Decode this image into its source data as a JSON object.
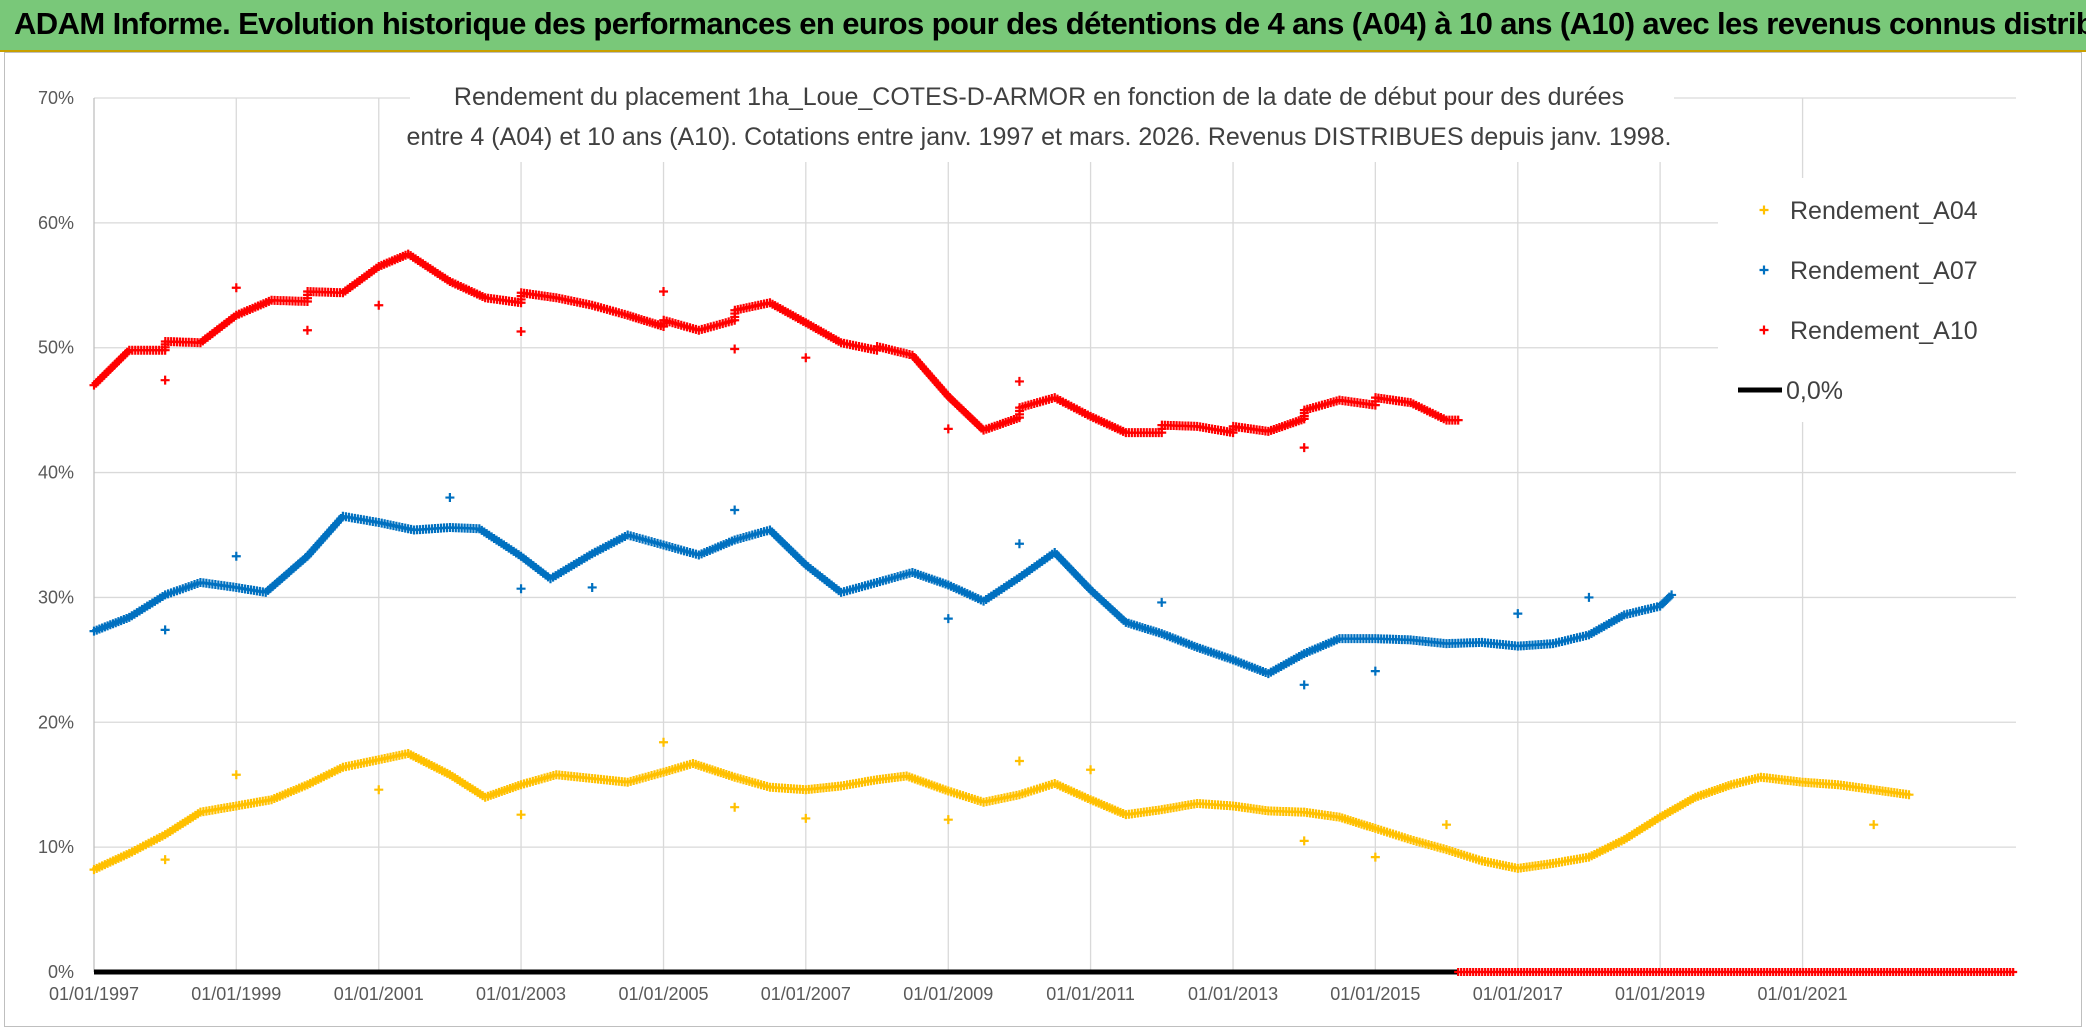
{
  "banner": {
    "text": "ADAM Informe. Evolution historique des performances en euros pour des détentions de 4 ans (A04) à 10 ans (A10) avec les revenus connus distribués"
  },
  "chart_data": {
    "type": "scatter",
    "title_line1": "Rendement du placement 1ha_Loue_COTES-D-ARMOR en fonction de la date de début pour des durées",
    "title_line2": "entre 4 (A04) et 10 ans (A10). Cotations entre janv. 1997 et mars. 2026. Revenus DISTRIBUES depuis janv. 1998.",
    "ylim": [
      0,
      70
    ],
    "y_ticks": [
      "0%",
      "10%",
      "20%",
      "30%",
      "40%",
      "50%",
      "60%",
      "70%"
    ],
    "x_range": [
      "1997-01-01",
      "2024-01-01"
    ],
    "x_ticks": [
      "01/01/1997",
      "01/01/1999",
      "01/01/2001",
      "01/01/2003",
      "01/01/2005",
      "01/01/2007",
      "01/01/2009",
      "01/01/2011",
      "01/01/2013",
      "01/01/2015",
      "01/01/2017",
      "01/01/2019",
      "01/01/2021"
    ],
    "grid": true,
    "legend_position": "right",
    "series": [
      {
        "name": "Rendement_A04",
        "color": "#ffc000",
        "marker": "plus",
        "points": [
          [
            "1997-01-01",
            8.2
          ],
          [
            "1997-07-01",
            9.5
          ],
          [
            "1998-01-01",
            11.0
          ],
          [
            "1998-07-01",
            12.8
          ],
          [
            "1999-01-01",
            13.3
          ],
          [
            "1999-07-01",
            13.8
          ],
          [
            "2000-01-01",
            15.0
          ],
          [
            "2000-07-01",
            16.4
          ],
          [
            "2001-01-01",
            17.0
          ],
          [
            "2001-06-01",
            17.5
          ],
          [
            "2002-01-01",
            15.8
          ],
          [
            "2002-07-01",
            14.0
          ],
          [
            "2003-01-01",
            15.0
          ],
          [
            "2003-07-01",
            15.8
          ],
          [
            "2004-01-01",
            15.5
          ],
          [
            "2004-07-01",
            15.2
          ],
          [
            "2005-01-01",
            16.0
          ],
          [
            "2005-06-01",
            16.7
          ],
          [
            "2006-01-01",
            15.6
          ],
          [
            "2006-07-01",
            14.8
          ],
          [
            "2007-01-01",
            14.6
          ],
          [
            "2007-07-01",
            14.9
          ],
          [
            "2008-01-01",
            15.4
          ],
          [
            "2008-06-01",
            15.7
          ],
          [
            "2009-01-01",
            14.5
          ],
          [
            "2009-07-01",
            13.6
          ],
          [
            "2010-01-01",
            14.2
          ],
          [
            "2010-07-01",
            15.1
          ],
          [
            "2011-01-01",
            13.8
          ],
          [
            "2011-07-01",
            12.6
          ],
          [
            "2012-01-01",
            13.0
          ],
          [
            "2012-07-01",
            13.5
          ],
          [
            "2013-01-01",
            13.3
          ],
          [
            "2013-07-01",
            12.9
          ],
          [
            "2014-01-01",
            12.8
          ],
          [
            "2014-07-01",
            12.4
          ],
          [
            "2015-01-01",
            11.5
          ],
          [
            "2015-07-01",
            10.6
          ],
          [
            "2016-01-01",
            9.8
          ],
          [
            "2016-07-01",
            8.9
          ],
          [
            "2017-01-01",
            8.3
          ],
          [
            "2017-07-01",
            8.7
          ],
          [
            "2018-01-01",
            9.2
          ],
          [
            "2018-07-01",
            10.6
          ],
          [
            "2019-01-01",
            12.4
          ],
          [
            "2019-07-01",
            14.0
          ],
          [
            "2020-01-01",
            15.0
          ],
          [
            "2020-06-01",
            15.6
          ],
          [
            "2021-01-01",
            15.2
          ],
          [
            "2021-07-01",
            15.0
          ],
          [
            "2022-01-01",
            14.6
          ],
          [
            "2022-07-01",
            14.2
          ]
        ],
        "outliers": [
          [
            "1998-01-01",
            9.0
          ],
          [
            "1999-01-01",
            15.8
          ],
          [
            "2001-01-01",
            14.6
          ],
          [
            "2003-01-01",
            12.6
          ],
          [
            "2005-01-01",
            18.4
          ],
          [
            "2006-01-01",
            13.2
          ],
          [
            "2007-01-01",
            12.3
          ],
          [
            "2009-01-01",
            12.2
          ],
          [
            "2010-01-01",
            16.9
          ],
          [
            "2011-01-01",
            16.2
          ],
          [
            "2014-01-01",
            10.5
          ],
          [
            "2015-01-01",
            9.2
          ],
          [
            "2016-01-01",
            11.8
          ],
          [
            "2022-01-01",
            11.8
          ]
        ]
      },
      {
        "name": "Rendement_A07",
        "color": "#0070c0",
        "marker": "plus",
        "points": [
          [
            "1997-01-01",
            27.3
          ],
          [
            "1997-07-01",
            28.4
          ],
          [
            "1998-01-01",
            30.2
          ],
          [
            "1998-07-01",
            31.2
          ],
          [
            "1999-01-01",
            30.8
          ],
          [
            "1999-06-01",
            30.4
          ],
          [
            "2000-01-01",
            33.3
          ],
          [
            "2000-07-01",
            36.5
          ],
          [
            "2001-01-01",
            36.0
          ],
          [
            "2001-07-01",
            35.4
          ],
          [
            "2002-01-01",
            35.6
          ],
          [
            "2002-06-01",
            35.5
          ],
          [
            "2003-01-01",
            33.3
          ],
          [
            "2003-06-01",
            31.5
          ],
          [
            "2004-01-01",
            33.5
          ],
          [
            "2004-07-01",
            35.0
          ],
          [
            "2005-01-01",
            34.2
          ],
          [
            "2005-07-01",
            33.4
          ],
          [
            "2006-01-01",
            34.6
          ],
          [
            "2006-07-01",
            35.4
          ],
          [
            "2007-01-01",
            32.6
          ],
          [
            "2007-07-01",
            30.4
          ],
          [
            "2008-01-01",
            31.2
          ],
          [
            "2008-07-01",
            32.0
          ],
          [
            "2009-01-01",
            31.0
          ],
          [
            "2009-07-01",
            29.7
          ],
          [
            "2010-01-01",
            31.6
          ],
          [
            "2010-07-01",
            33.6
          ],
          [
            "2011-01-01",
            30.6
          ],
          [
            "2011-07-01",
            28.0
          ],
          [
            "2012-01-01",
            27.1
          ],
          [
            "2012-07-01",
            26.0
          ],
          [
            "2013-01-01",
            25.0
          ],
          [
            "2013-07-01",
            23.9
          ],
          [
            "2014-01-01",
            25.5
          ],
          [
            "2014-07-01",
            26.7
          ],
          [
            "2015-01-01",
            26.7
          ],
          [
            "2015-07-01",
            26.6
          ],
          [
            "2016-01-01",
            26.3
          ],
          [
            "2016-07-01",
            26.4
          ],
          [
            "2017-01-01",
            26.1
          ],
          [
            "2017-07-01",
            26.3
          ],
          [
            "2018-01-01",
            27.0
          ],
          [
            "2018-07-01",
            28.6
          ],
          [
            "2019-01-01",
            29.3
          ],
          [
            "2019-03-01",
            30.2
          ]
        ],
        "outliers": [
          [
            "1998-01-01",
            27.4
          ],
          [
            "1999-01-01",
            33.3
          ],
          [
            "2002-01-01",
            38.0
          ],
          [
            "2003-01-01",
            30.7
          ],
          [
            "2004-01-01",
            30.8
          ],
          [
            "2006-01-01",
            37.0
          ],
          [
            "2009-01-01",
            28.3
          ],
          [
            "2010-01-01",
            34.3
          ],
          [
            "2012-01-01",
            29.6
          ],
          [
            "2014-01-01",
            23.0
          ],
          [
            "2015-01-01",
            24.1
          ],
          [
            "2017-01-01",
            28.7
          ],
          [
            "2018-01-01",
            30.0
          ]
        ]
      },
      {
        "name": "Rendement_A10",
        "color": "#ff0000",
        "marker": "plus",
        "points": [
          [
            "1997-01-01",
            47.0
          ],
          [
            "1997-07-01",
            49.8
          ],
          [
            "1998-01-01",
            49.8
          ],
          [
            "1998-01-02",
            50.5
          ],
          [
            "1998-07-01",
            50.4
          ],
          [
            "1999-01-01",
            52.6
          ],
          [
            "1999-07-01",
            53.8
          ],
          [
            "2000-01-01",
            53.7
          ],
          [
            "2000-01-02",
            54.5
          ],
          [
            "2000-07-01",
            54.4
          ],
          [
            "2001-01-01",
            56.5
          ],
          [
            "2001-06-01",
            57.5
          ],
          [
            "2002-01-01",
            55.3
          ],
          [
            "2002-07-01",
            54.0
          ],
          [
            "2003-01-01",
            53.6
          ],
          [
            "2003-01-02",
            54.4
          ],
          [
            "2003-07-01",
            54.0
          ],
          [
            "2004-01-01",
            53.4
          ],
          [
            "2004-07-01",
            52.6
          ],
          [
            "2005-01-01",
            51.7
          ],
          [
            "2005-01-02",
            52.2
          ],
          [
            "2005-07-01",
            51.4
          ],
          [
            "2006-01-01",
            52.2
          ],
          [
            "2006-01-02",
            53.0
          ],
          [
            "2006-07-01",
            53.6
          ],
          [
            "2007-01-01",
            52.0
          ],
          [
            "2007-07-01",
            50.4
          ],
          [
            "2008-01-01",
            49.8
          ],
          [
            "2008-01-02",
            50.1
          ],
          [
            "2008-07-01",
            49.4
          ],
          [
            "2009-01-01",
            46.1
          ],
          [
            "2009-07-01",
            43.4
          ],
          [
            "2010-01-01",
            44.4
          ],
          [
            "2010-01-02",
            45.2
          ],
          [
            "2010-07-01",
            46.0
          ],
          [
            "2011-01-01",
            44.5
          ],
          [
            "2011-07-01",
            43.2
          ],
          [
            "2012-01-01",
            43.2
          ],
          [
            "2012-01-02",
            43.8
          ],
          [
            "2012-07-01",
            43.7
          ],
          [
            "2013-01-01",
            43.2
          ],
          [
            "2013-01-02",
            43.7
          ],
          [
            "2013-07-01",
            43.3
          ],
          [
            "2014-01-01",
            44.3
          ],
          [
            "2014-01-02",
            45.0
          ],
          [
            "2014-07-01",
            45.8
          ],
          [
            "2015-01-01",
            45.4
          ],
          [
            "2015-01-02",
            46.0
          ],
          [
            "2015-07-01",
            45.6
          ],
          [
            "2016-01-01",
            44.2
          ],
          [
            "2016-03-01",
            44.2
          ]
        ],
        "outliers": [
          [
            "1998-01-01",
            47.4
          ],
          [
            "1999-01-01",
            54.8
          ],
          [
            "2000-01-01",
            51.4
          ],
          [
            "2001-01-01",
            53.4
          ],
          [
            "2003-01-01",
            51.3
          ],
          [
            "2005-01-01",
            54.5
          ],
          [
            "2006-01-01",
            49.9
          ],
          [
            "2007-01-01",
            49.2
          ],
          [
            "2009-01-01",
            43.5
          ],
          [
            "2010-01-01",
            47.3
          ],
          [
            "2014-01-01",
            42.0
          ]
        ]
      },
      {
        "name": "0,0%",
        "color": "#000000",
        "marker": "line",
        "points": [
          [
            "1997-01-01",
            0
          ],
          [
            "2016-03-01",
            0
          ]
        ],
        "outliers": []
      }
    ],
    "zero_markers": {
      "color": "#ff0000",
      "from": "2016-03-01",
      "to": "2024-01-01",
      "value": 0
    }
  }
}
